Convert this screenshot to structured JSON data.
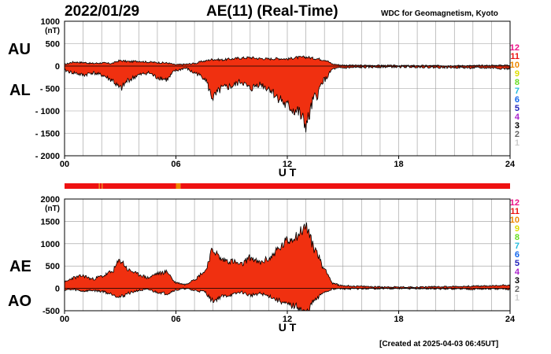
{
  "header": {
    "date": "2022/01/29",
    "title": "AE(11) (Real-Time)",
    "organization": "WDC for Geomagnetism, Kyoto"
  },
  "footer": {
    "created": "[Created at 2025-04-03 06:45UT]"
  },
  "panel_labels": {
    "top_upper": "AU",
    "top_lower": "AL",
    "bottom_upper": "AE",
    "bottom_lower": "AO"
  },
  "station_legend": {
    "counts": [
      "12",
      "11",
      "10",
      "9",
      "8",
      "7",
      "6",
      "5",
      "4",
      "3",
      "2",
      "1"
    ],
    "colors": [
      "#ee1188",
      "#ee1111",
      "#ee8800",
      "#dddd00",
      "#66dd22",
      "#22bbdd",
      "#1166ee",
      "#2222bb",
      "#aa22cc",
      "#000000",
      "#666666",
      "#cccccc"
    ]
  },
  "colors": {
    "fill": "#f03010",
    "outline": "#000000",
    "grid": "#999999",
    "count_11": "#ee1111",
    "count_10": "#ee8800"
  },
  "chart_data": [
    {
      "type": "area",
      "series": [
        {
          "name": "AU"
        },
        {
          "name": "AL"
        }
      ],
      "xlabel": "U T",
      "ylabel_unit": "(nT)",
      "xlim": [
        0,
        24
      ],
      "ylim": [
        -2000,
        1000
      ],
      "x_ticks": [
        "00",
        "06",
        "12",
        "18",
        "24"
      ],
      "y_ticks": [
        "1000",
        "500",
        "0",
        "- 500",
        "- 1000",
        "- 1500",
        "- 2000"
      ],
      "grid": true,
      "x": [
        0,
        0.5,
        1,
        1.5,
        2,
        2.5,
        3,
        3.5,
        4,
        4.5,
        5,
        5.5,
        6,
        6.5,
        7,
        7.5,
        8,
        8.5,
        9,
        9.5,
        10,
        10.5,
        11,
        11.5,
        12,
        12.5,
        13,
        13.5,
        14,
        14.5,
        15,
        16,
        17,
        18,
        19,
        20,
        21,
        22,
        23,
        24
      ],
      "AU": [
        40,
        90,
        80,
        60,
        70,
        60,
        120,
        100,
        110,
        90,
        80,
        70,
        30,
        40,
        60,
        110,
        150,
        140,
        160,
        180,
        190,
        170,
        160,
        170,
        160,
        190,
        200,
        170,
        140,
        40,
        20,
        15,
        15,
        10,
        10,
        10,
        10,
        10,
        15,
        20
      ],
      "AL": [
        -100,
        -150,
        -200,
        -150,
        -200,
        -300,
        -500,
        -300,
        -200,
        -150,
        -250,
        -300,
        -100,
        -50,
        -150,
        -250,
        -700,
        -500,
        -450,
        -350,
        -500,
        -400,
        -500,
        -700,
        -900,
        -1000,
        -1300,
        -700,
        -300,
        -60,
        -40,
        -30,
        -20,
        -20,
        -20,
        -30,
        -30,
        -40,
        -40,
        -60
      ]
    },
    {
      "type": "area",
      "series": [
        {
          "name": "AE"
        },
        {
          "name": "AO"
        }
      ],
      "xlabel": "U T",
      "ylabel_unit": "(nT)",
      "xlim": [
        0,
        24
      ],
      "ylim": [
        -500,
        2000
      ],
      "x_ticks": [
        "00",
        "06",
        "12",
        "18",
        "24"
      ],
      "y_ticks": [
        "2000",
        "1500",
        "1000",
        "500",
        "0",
        "-500"
      ],
      "grid": true,
      "x": [
        0,
        0.5,
        1,
        1.5,
        2,
        2.5,
        3,
        3.5,
        4,
        4.5,
        5,
        5.5,
        6,
        6.5,
        7,
        7.5,
        8,
        8.5,
        9,
        9.5,
        10,
        10.5,
        11,
        11.5,
        12,
        12.5,
        13,
        13.5,
        14,
        14.5,
        15,
        16,
        17,
        18,
        19,
        20,
        21,
        22,
        23,
        24
      ],
      "AE": [
        140,
        240,
        280,
        210,
        270,
        360,
        620,
        400,
        310,
        240,
        330,
        370,
        130,
        90,
        210,
        360,
        850,
        640,
        610,
        530,
        690,
        570,
        660,
        870,
        1060,
        1190,
        1380,
        870,
        440,
        100,
        60,
        45,
        35,
        30,
        30,
        40,
        40,
        50,
        55,
        80
      ],
      "AO": [
        -30,
        -30,
        -60,
        -45,
        -65,
        -120,
        -190,
        -100,
        -45,
        -30,
        -85,
        -115,
        -35,
        -5,
        -45,
        -70,
        -275,
        -180,
        -145,
        -85,
        -155,
        -115,
        -170,
        -265,
        -370,
        -405,
        -550,
        -265,
        -80,
        -10,
        -10,
        -8,
        -3,
        -5,
        -5,
        -10,
        -10,
        -15,
        -12,
        -20
      ]
    }
  ],
  "station_bar": {
    "segments": [
      {
        "from": 0,
        "to": 1.85,
        "count": "11"
      },
      {
        "from": 1.85,
        "to": 1.9,
        "count": "10"
      },
      {
        "from": 1.9,
        "to": 2.0,
        "count": "11"
      },
      {
        "from": 2.0,
        "to": 2.05,
        "count": "10"
      },
      {
        "from": 2.05,
        "to": 6.0,
        "count": "11"
      },
      {
        "from": 6.0,
        "to": 6.25,
        "count": "10"
      },
      {
        "from": 6.25,
        "to": 24,
        "count": "11"
      }
    ]
  }
}
